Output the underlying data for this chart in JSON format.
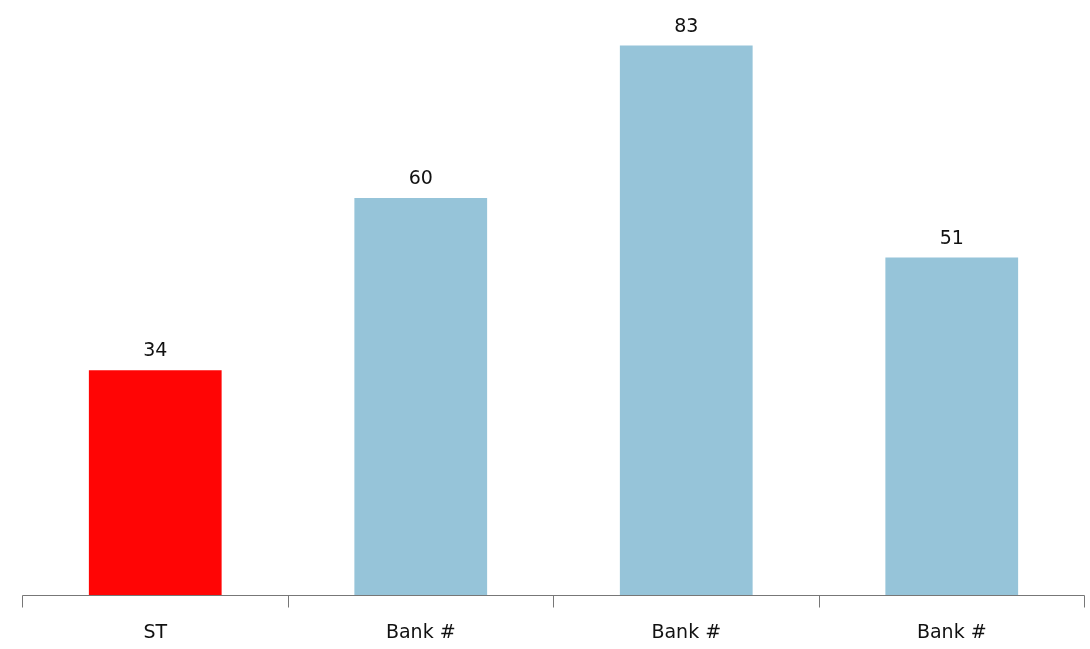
{
  "chart_data": {
    "type": "bar",
    "categories": [
      "ST",
      "Bank #",
      "Bank #",
      "Bank #"
    ],
    "values": [
      34,
      60,
      83,
      51
    ],
    "colors": [
      "#ff0505",
      "#96c4d9",
      "#96c4d9",
      "#96c4d9"
    ],
    "data_labels": true
  }
}
